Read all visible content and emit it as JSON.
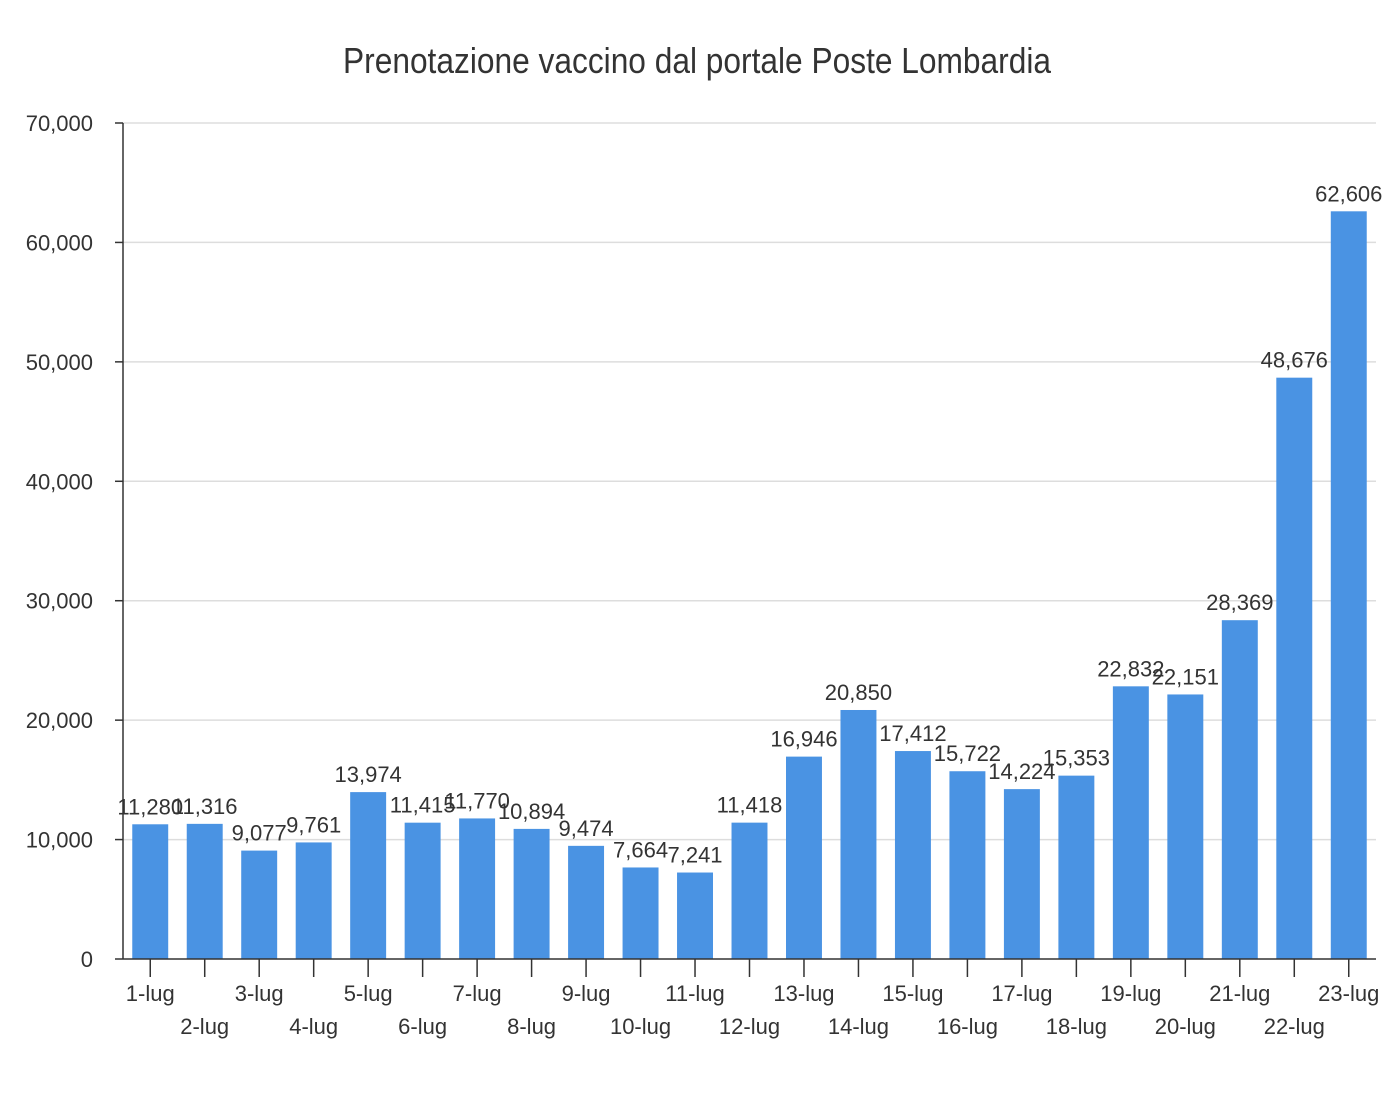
{
  "chart_data": {
    "type": "bar",
    "title": "Prenotazione vaccino dal portale Poste Lombardia",
    "xlabel": "",
    "ylabel": "",
    "ylim": [
      0,
      70000
    ],
    "yticks": [
      "0",
      "10,000",
      "20,000",
      "30,000",
      "40,000",
      "50,000",
      "60,000",
      "70,000"
    ],
    "grid": true,
    "legend": "none",
    "bar_color": "#4a93e3",
    "categories": [
      "1-lug",
      "2-lug",
      "3-lug",
      "4-lug",
      "5-lug",
      "6-lug",
      "7-lug",
      "8-lug",
      "9-lug",
      "10-lug",
      "11-lug",
      "12-lug",
      "13-lug",
      "14-lug",
      "15-lug",
      "16-lug",
      "17-lug",
      "18-lug",
      "19-lug",
      "20-lug",
      "21-lug",
      "22-lug",
      "23-lug"
    ],
    "values": [
      11280,
      11316,
      9077,
      9761,
      13974,
      11415,
      11770,
      10894,
      9474,
      7664,
      7241,
      11418,
      16946,
      20850,
      17412,
      15722,
      14224,
      15353,
      22832,
      22151,
      28369,
      48676,
      62606
    ],
    "labels": [
      "11,280",
      "11,316",
      "9,077",
      "9,761",
      "13,974",
      "11,415",
      "11,770",
      "10,894",
      "9,474",
      "7,664",
      "7,241",
      "11,418",
      "16,946",
      "20,850",
      "17,412",
      "15,722",
      "14,224",
      "15,353",
      "22,832",
      "22,151",
      "28,369",
      "48,676",
      "62,606"
    ]
  }
}
